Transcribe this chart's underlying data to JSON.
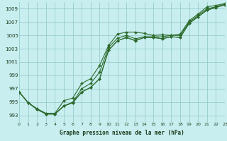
{
  "title": "Graphe pression niveau de la mer (hPa)",
  "background_color": "#c8eef0",
  "grid_color": "#99cccc",
  "line_color": "#2d6b2d",
  "text_color": "#1a3a1a",
  "xlim": [
    0,
    23
  ],
  "ylim": [
    992,
    1010
  ],
  "yticks": [
    993,
    995,
    997,
    999,
    1001,
    1003,
    1005,
    1007,
    1009
  ],
  "xticks": [
    0,
    1,
    2,
    3,
    4,
    5,
    6,
    7,
    8,
    9,
    10,
    11,
    12,
    13,
    14,
    15,
    16,
    17,
    18,
    19,
    20,
    21,
    22,
    23
  ],
  "series": [
    [
      996.5,
      994.9,
      994.0,
      993.3,
      993.3,
      995.2,
      995.6,
      997.8,
      998.5,
      1000.5,
      1003.5,
      1005.2,
      1005.5,
      1005.5,
      1005.3,
      1005.0,
      1005.1,
      1005.0,
      1005.2,
      1007.2,
      1008.2,
      1009.3,
      1009.5,
      1009.8
    ],
    [
      996.5,
      994.9,
      993.9,
      993.2,
      993.2,
      994.4,
      995.0,
      997.0,
      997.8,
      999.5,
      1003.2,
      1004.6,
      1005.0,
      1004.5,
      1004.8,
      1004.8,
      1004.8,
      1005.0,
      1005.0,
      1007.0,
      1008.0,
      1009.0,
      1009.3,
      1009.7
    ],
    [
      996.5,
      994.9,
      993.9,
      993.2,
      993.2,
      994.4,
      994.9,
      996.5,
      997.2,
      998.5,
      1002.8,
      1004.2,
      1004.7,
      1004.2,
      1004.7,
      1004.7,
      1004.5,
      1004.8,
      1004.7,
      1006.8,
      1007.8,
      1008.8,
      1009.2,
      1009.6
    ],
    [
      996.5,
      994.9,
      993.9,
      993.2,
      993.2,
      994.4,
      994.9,
      996.5,
      997.2,
      998.5,
      1002.8,
      1004.2,
      1004.7,
      1004.2,
      1004.7,
      1004.7,
      1004.5,
      1004.8,
      1004.7,
      1006.8,
      1007.8,
      1008.8,
      1009.2,
      1009.6
    ]
  ]
}
